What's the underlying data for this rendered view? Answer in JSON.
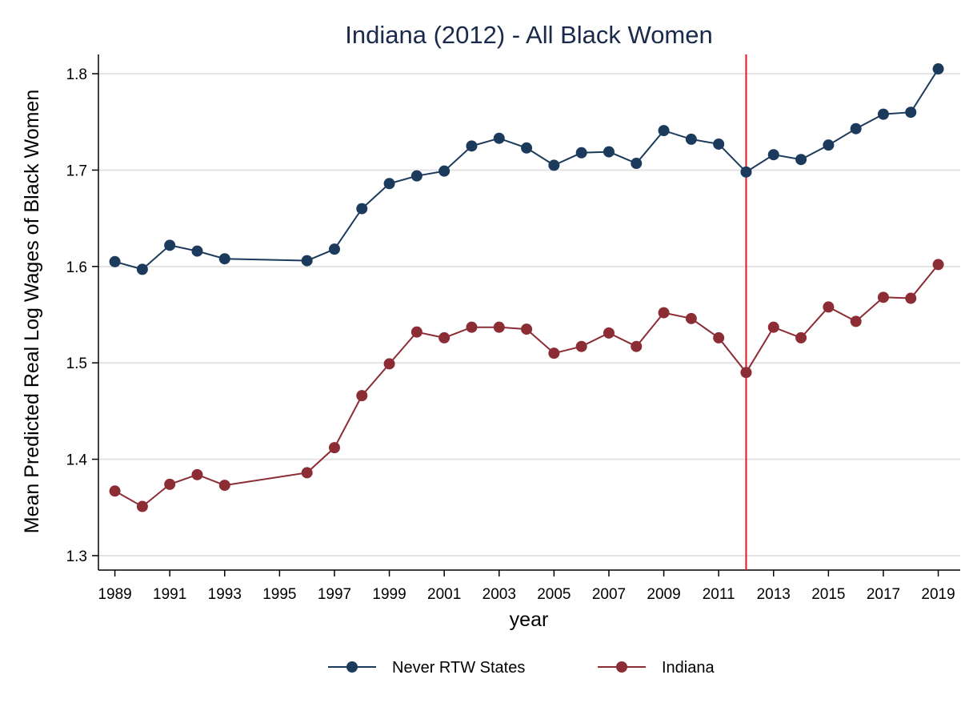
{
  "chart_data": {
    "type": "line",
    "title": "Indiana (2012) - All Black Women",
    "xlabel": "year",
    "ylabel": "Mean Predicted Real Log Wages of Black Women",
    "xlim": [
      1988.4,
      2019.8
    ],
    "ylim": [
      1.285,
      1.82
    ],
    "xticks": [
      1989,
      1991,
      1993,
      1995,
      1997,
      1999,
      2001,
      2003,
      2005,
      2007,
      2009,
      2011,
      2013,
      2015,
      2017,
      2019
    ],
    "yticks": [
      1.3,
      1.4,
      1.5,
      1.6,
      1.7,
      1.8
    ],
    "ytick_labels": [
      "1.3",
      "1.4",
      "1.5",
      "1.6",
      "1.7",
      "1.8"
    ],
    "grid": true,
    "legend_position": "bottom",
    "vline": {
      "x": 2012,
      "color": "#e8141c"
    },
    "series": [
      {
        "name": "Never RTW States",
        "color": "#1b3a5c",
        "x": [
          1989,
          1990,
          1991,
          1992,
          1993,
          1996,
          1997,
          1998,
          1999,
          2000,
          2001,
          2002,
          2003,
          2004,
          2005,
          2006,
          2007,
          2008,
          2009,
          2010,
          2011,
          2012,
          2013,
          2014,
          2015,
          2016,
          2017,
          2018,
          2019
        ],
        "y": [
          1.605,
          1.597,
          1.622,
          1.616,
          1.608,
          1.606,
          1.618,
          1.66,
          1.686,
          1.694,
          1.699,
          1.725,
          1.733,
          1.723,
          1.705,
          1.718,
          1.719,
          1.707,
          1.741,
          1.732,
          1.727,
          1.698,
          1.716,
          1.711,
          1.726,
          1.743,
          1.758,
          1.76,
          1.805
        ]
      },
      {
        "name": "Indiana",
        "color": "#8c2c35",
        "x": [
          1989,
          1990,
          1991,
          1992,
          1993,
          1996,
          1997,
          1998,
          1999,
          2000,
          2001,
          2002,
          2003,
          2004,
          2005,
          2006,
          2007,
          2008,
          2009,
          2010,
          2011,
          2012,
          2013,
          2014,
          2015,
          2016,
          2017,
          2018,
          2019
        ],
        "y": [
          1.367,
          1.351,
          1.374,
          1.384,
          1.373,
          1.386,
          1.412,
          1.466,
          1.499,
          1.532,
          1.526,
          1.537,
          1.537,
          1.535,
          1.51,
          1.517,
          1.531,
          1.517,
          1.552,
          1.546,
          1.526,
          1.49,
          1.537,
          1.526,
          1.558,
          1.543,
          1.568,
          1.567,
          1.602
        ]
      }
    ]
  }
}
